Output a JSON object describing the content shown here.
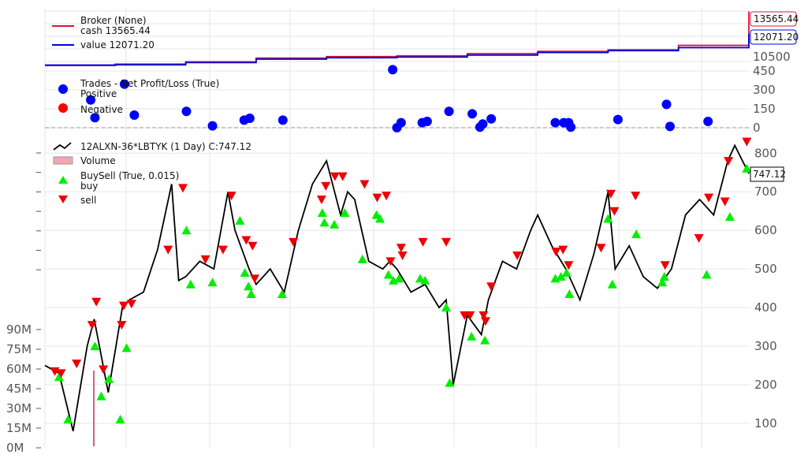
{
  "chart_data": [
    {
      "type": "line",
      "panel": "broker",
      "legend": [
        {
          "label": "Broker (None)",
          "color": "#dc143c"
        },
        {
          "label": "cash 13565.44",
          "color": "#dc143c"
        },
        {
          "label": "value 12071.20",
          "color": "#0000dd"
        }
      ],
      "last_labels": {
        "cash": "13565.44",
        "value": "12071.20"
      },
      "yticks": [
        "10500"
      ],
      "x": [
        0,
        10,
        20,
        30,
        40,
        50,
        60,
        70,
        80,
        90,
        100
      ],
      "series": [
        {
          "name": "cash",
          "color": "#dc143c",
          "values": [
            9950,
            10050,
            10200,
            10450,
            10550,
            10600,
            10750,
            10900,
            11000,
            11300,
            13565
          ]
        },
        {
          "name": "value",
          "color": "#0000dd",
          "values": [
            9980,
            10000,
            10150,
            10380,
            10470,
            10520,
            10650,
            10820,
            10950,
            11150,
            12071
          ]
        }
      ]
    },
    {
      "type": "scatter",
      "panel": "trades",
      "legend": [
        {
          "label": "Trades - Net Profit/Loss (True)",
          "color": ""
        },
        {
          "label": "Positive",
          "color": "#0000ff"
        },
        {
          "label": "Negative",
          "color": "#ff0000"
        }
      ],
      "yticks": [
        0,
        150,
        300,
        450
      ],
      "ylim": [
        0,
        500
      ],
      "points": [
        {
          "x": 6.5,
          "y": 220
        },
        {
          "x": 7.1,
          "y": 80
        },
        {
          "x": 11.3,
          "y": 345
        },
        {
          "x": 12.7,
          "y": 100
        },
        {
          "x": 20.1,
          "y": 130
        },
        {
          "x": 23.8,
          "y": 15
        },
        {
          "x": 28.3,
          "y": 60
        },
        {
          "x": 29.1,
          "y": 75
        },
        {
          "x": 33.8,
          "y": 60
        },
        {
          "x": 49.4,
          "y": 460
        },
        {
          "x": 50.0,
          "y": 0
        },
        {
          "x": 50.6,
          "y": 40
        },
        {
          "x": 53.6,
          "y": 40
        },
        {
          "x": 54.3,
          "y": 50
        },
        {
          "x": 57.4,
          "y": 130
        },
        {
          "x": 60.7,
          "y": 110
        },
        {
          "x": 61.8,
          "y": 5
        },
        {
          "x": 62.2,
          "y": 30
        },
        {
          "x": 63.4,
          "y": 70
        },
        {
          "x": 72.5,
          "y": 40
        },
        {
          "x": 73.7,
          "y": 40
        },
        {
          "x": 74.4,
          "y": 40
        },
        {
          "x": 74.7,
          "y": 5
        },
        {
          "x": 81.4,
          "y": 65
        },
        {
          "x": 88.3,
          "y": 185
        },
        {
          "x": 88.8,
          "y": 10
        },
        {
          "x": 94.2,
          "y": 50
        }
      ]
    },
    {
      "type": "line",
      "panel": "price",
      "legend": [
        {
          "label": "12ALXN-36*LBTYK (1 Day) C:747.12",
          "color": "#000000"
        },
        {
          "label": "Volume",
          "color": "#f4a6b0"
        },
        {
          "label": "BuySell (True, 0.015)",
          "color": ""
        },
        {
          "label": "buy",
          "color": "#00ee00"
        },
        {
          "label": "sell",
          "color": "#ee0000"
        }
      ],
      "last_label": "747.12",
      "yticks": [
        100,
        200,
        300,
        400,
        500,
        600,
        700,
        800
      ],
      "volume_ticks": [
        "0M",
        "15M",
        "30M",
        "45M",
        "60M",
        "75M",
        "90M"
      ],
      "ylim": [
        60,
        850
      ],
      "x": [
        0,
        2,
        4,
        6,
        7,
        9,
        11,
        12,
        14,
        16,
        18,
        19,
        20,
        22,
        24,
        26,
        27,
        29,
        30,
        32,
        34,
        36,
        38,
        40,
        42,
        43,
        44,
        46,
        48,
        49,
        50,
        52,
        54,
        56,
        57,
        58,
        60,
        62,
        63,
        65,
        67,
        69,
        70,
        72,
        74,
        76,
        78,
        80,
        81,
        83,
        85,
        87,
        89,
        91,
        93,
        95,
        97,
        98,
        100
      ],
      "values": [
        250,
        230,
        80,
        300,
        370,
        180,
        400,
        420,
        440,
        550,
        720,
        470,
        480,
        520,
        500,
        700,
        600,
        500,
        460,
        500,
        440,
        600,
        720,
        780,
        640,
        700,
        680,
        520,
        500,
        520,
        500,
        440,
        460,
        400,
        420,
        200,
        380,
        330,
        420,
        520,
        500,
        600,
        640,
        560,
        500,
        420,
        540,
        700,
        500,
        560,
        480,
        450,
        500,
        640,
        680,
        640,
        780,
        820,
        747
      ],
      "buy_points": [
        {
          "x": 2.0,
          "y": 220
        },
        {
          "x": 3.3,
          "y": 110
        },
        {
          "x": 7.1,
          "y": 300
        },
        {
          "x": 8.0,
          "y": 170
        },
        {
          "x": 9.1,
          "y": 215
        },
        {
          "x": 10.7,
          "y": 110
        },
        {
          "x": 11.6,
          "y": 295
        },
        {
          "x": 20.1,
          "y": 600
        },
        {
          "x": 20.7,
          "y": 460
        },
        {
          "x": 23.8,
          "y": 465
        },
        {
          "x": 27.7,
          "y": 625
        },
        {
          "x": 28.4,
          "y": 490
        },
        {
          "x": 28.9,
          "y": 455
        },
        {
          "x": 29.3,
          "y": 435
        },
        {
          "x": 33.7,
          "y": 435
        },
        {
          "x": 39.4,
          "y": 645
        },
        {
          "x": 39.7,
          "y": 620
        },
        {
          "x": 41.1,
          "y": 615
        },
        {
          "x": 42.6,
          "y": 645
        },
        {
          "x": 45.1,
          "y": 525
        },
        {
          "x": 47.1,
          "y": 640
        },
        {
          "x": 47.6,
          "y": 630
        },
        {
          "x": 48.8,
          "y": 485
        },
        {
          "x": 49.5,
          "y": 470
        },
        {
          "x": 50.3,
          "y": 475
        },
        {
          "x": 53.3,
          "y": 475
        },
        {
          "x": 54.0,
          "y": 470
        },
        {
          "x": 57.0,
          "y": 400
        },
        {
          "x": 57.5,
          "y": 205
        },
        {
          "x": 60.6,
          "y": 325
        },
        {
          "x": 62.5,
          "y": 315
        },
        {
          "x": 72.5,
          "y": 475
        },
        {
          "x": 73.3,
          "y": 480
        },
        {
          "x": 74.1,
          "y": 490
        },
        {
          "x": 74.5,
          "y": 435
        },
        {
          "x": 80.0,
          "y": 630
        },
        {
          "x": 80.6,
          "y": 460
        },
        {
          "x": 84.0,
          "y": 590
        },
        {
          "x": 87.7,
          "y": 465
        },
        {
          "x": 88.0,
          "y": 480
        },
        {
          "x": 94.0,
          "y": 485
        },
        {
          "x": 97.3,
          "y": 635
        },
        {
          "x": 99.7,
          "y": 760
        }
      ],
      "sell_points": [
        {
          "x": 1.4,
          "y": 235
        },
        {
          "x": 2.3,
          "y": 230
        },
        {
          "x": 4.5,
          "y": 255
        },
        {
          "x": 6.7,
          "y": 355
        },
        {
          "x": 7.3,
          "y": 415
        },
        {
          "x": 8.3,
          "y": 240
        },
        {
          "x": 10.9,
          "y": 355
        },
        {
          "x": 11.2,
          "y": 405
        },
        {
          "x": 12.3,
          "y": 410
        },
        {
          "x": 17.5,
          "y": 550
        },
        {
          "x": 19.6,
          "y": 710
        },
        {
          "x": 22.8,
          "y": 525
        },
        {
          "x": 25.3,
          "y": 550
        },
        {
          "x": 26.5,
          "y": 690
        },
        {
          "x": 28.6,
          "y": 575
        },
        {
          "x": 29.5,
          "y": 560
        },
        {
          "x": 29.8,
          "y": 475
        },
        {
          "x": 35.3,
          "y": 570
        },
        {
          "x": 39.3,
          "y": 680
        },
        {
          "x": 39.9,
          "y": 715
        },
        {
          "x": 41.2,
          "y": 740
        },
        {
          "x": 42.3,
          "y": 740
        },
        {
          "x": 45.4,
          "y": 720
        },
        {
          "x": 47.2,
          "y": 685
        },
        {
          "x": 48.5,
          "y": 690
        },
        {
          "x": 49.1,
          "y": 520
        },
        {
          "x": 50.6,
          "y": 555
        },
        {
          "x": 50.8,
          "y": 535
        },
        {
          "x": 53.7,
          "y": 570
        },
        {
          "x": 57.0,
          "y": 570
        },
        {
          "x": 59.6,
          "y": 380
        },
        {
          "x": 60.4,
          "y": 380
        },
        {
          "x": 62.3,
          "y": 380
        },
        {
          "x": 62.6,
          "y": 365
        },
        {
          "x": 63.4,
          "y": 455
        },
        {
          "x": 67.1,
          "y": 535
        },
        {
          "x": 72.6,
          "y": 545
        },
        {
          "x": 73.6,
          "y": 550
        },
        {
          "x": 74.4,
          "y": 510
        },
        {
          "x": 79.0,
          "y": 555
        },
        {
          "x": 80.4,
          "y": 695
        },
        {
          "x": 80.9,
          "y": 650
        },
        {
          "x": 83.9,
          "y": 690
        },
        {
          "x": 88.1,
          "y": 510
        },
        {
          "x": 92.9,
          "y": 580
        },
        {
          "x": 94.3,
          "y": 685
        },
        {
          "x": 96.6,
          "y": 675
        },
        {
          "x": 97.1,
          "y": 780
        },
        {
          "x": 99.7,
          "y": 830
        }
      ]
    }
  ]
}
